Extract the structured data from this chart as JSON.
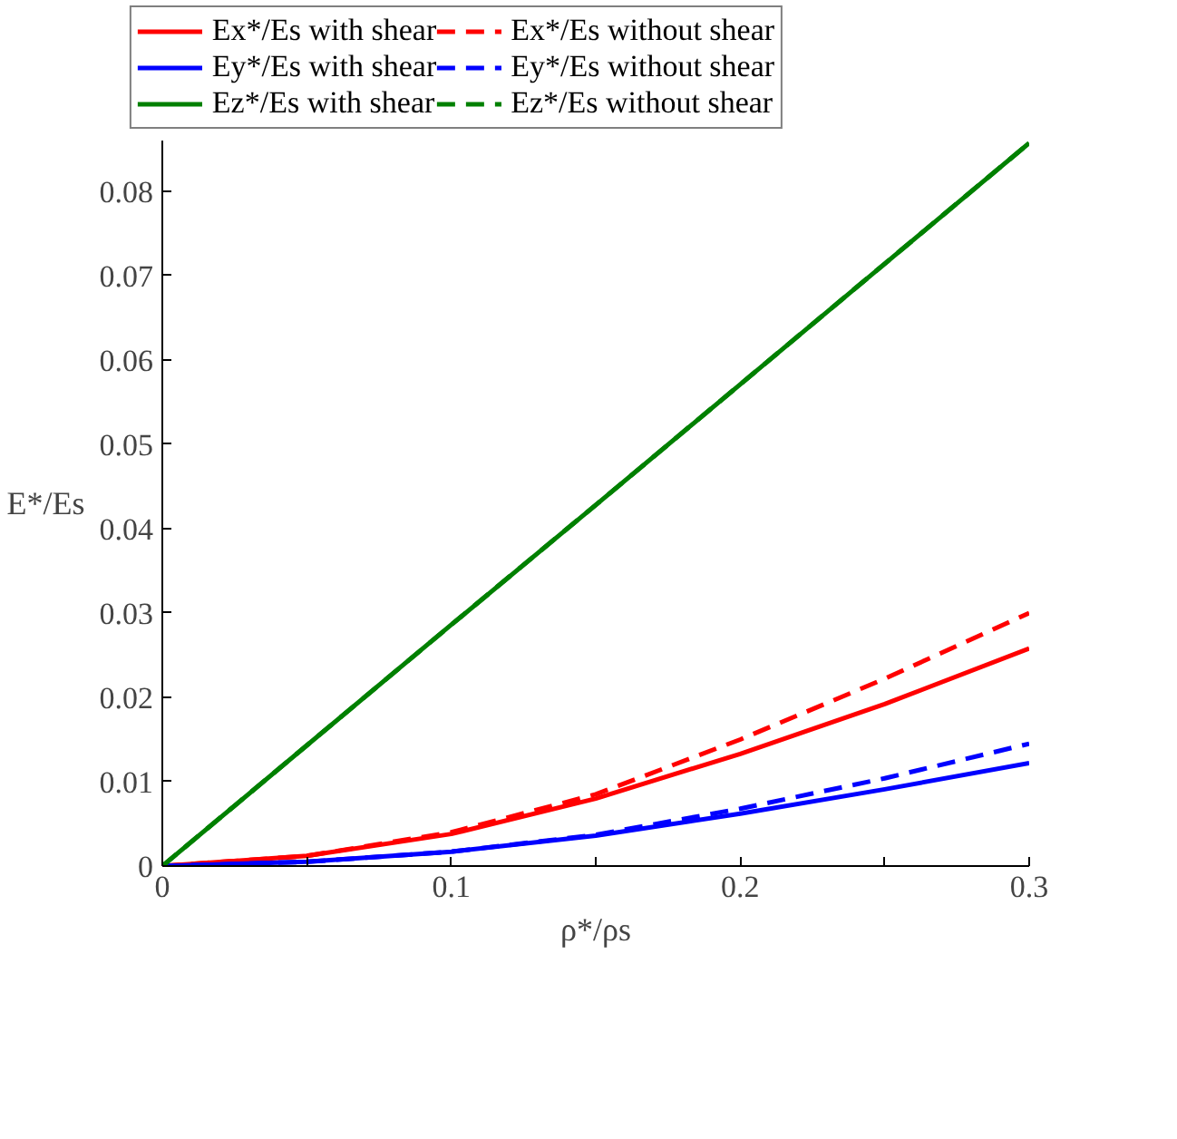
{
  "chart_data": {
    "type": "line",
    "xlabel": "ρ*/ρs",
    "ylabel": "E*/Es",
    "x": [
      0,
      0.05,
      0.1,
      0.15,
      0.2,
      0.25,
      0.3
    ],
    "series": [
      {
        "name": "Ex*/Es with shear",
        "color": "#ff0000",
        "line_style": "solid",
        "values": [
          0,
          0.0012,
          0.0038,
          0.008,
          0.0133,
          0.0192,
          0.0258
        ]
      },
      {
        "name": "Ex*/Es without shear",
        "color": "#ff0000",
        "line_style": "dashed",
        "values": [
          0,
          0.0012,
          0.004,
          0.0085,
          0.015,
          0.0222,
          0.03
        ]
      },
      {
        "name": "Ey*/Es with shear",
        "color": "#0000ff",
        "line_style": "solid",
        "values": [
          0,
          0.0005,
          0.0017,
          0.0036,
          0.0062,
          0.0091,
          0.0122
        ]
      },
      {
        "name": "Ey*/Es without shear",
        "color": "#0000ff",
        "line_style": "dashed",
        "values": [
          0,
          0.0005,
          0.0017,
          0.0037,
          0.0068,
          0.0104,
          0.0145
        ]
      },
      {
        "name": "Ez*/Es with shear",
        "color": "#008000",
        "line_style": "solid",
        "values": [
          0,
          0.0143,
          0.0286,
          0.0428,
          0.0571,
          0.0714,
          0.0857
        ]
      },
      {
        "name": "Ez*/Es without shear",
        "color": "#008000",
        "line_style": "dashed",
        "values": [
          0,
          0.0143,
          0.0286,
          0.0428,
          0.0571,
          0.0714,
          0.0857
        ]
      }
    ],
    "xlim": [
      0,
      0.3
    ],
    "ylim": [
      0,
      0.086
    ],
    "xticks": [
      0,
      {
        "value": 0.05,
        "label": null
      },
      0.1,
      {
        "value": 0.15,
        "label": null
      },
      0.2,
      {
        "value": 0.25,
        "label": null
      },
      0.3
    ],
    "yticks": [
      0,
      0.01,
      0.02,
      0.03,
      0.04,
      0.05,
      0.06,
      0.07,
      0.08
    ],
    "grid": false,
    "legend": "top",
    "marker": "none"
  }
}
